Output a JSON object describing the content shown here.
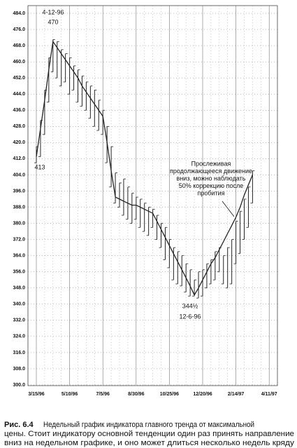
{
  "chart_data": {
    "type": "range-line",
    "categories": [
      "3/15/96",
      null,
      null,
      null,
      null,
      null,
      null,
      null,
      "5/10/96",
      null,
      null,
      null,
      null,
      null,
      null,
      null,
      "7/5/96",
      null,
      null,
      null,
      null,
      null,
      null,
      null,
      "8/30/96",
      null,
      null,
      null,
      null,
      null,
      null,
      null,
      "10/25/96",
      null,
      null,
      null,
      null,
      null,
      null,
      null,
      "12/20/96",
      null,
      null,
      null,
      null,
      null,
      null,
      null,
      "2/14/97",
      null,
      null,
      null,
      null,
      null,
      null,
      null,
      "4/11/97"
    ],
    "high": [
      418,
      431,
      446,
      462,
      471,
      470,
      466,
      464,
      462,
      458,
      456,
      453,
      450,
      448,
      446,
      441,
      436,
      428,
      418,
      405,
      400,
      402,
      398,
      395,
      393,
      392,
      390,
      388,
      387,
      384,
      380,
      378,
      372,
      368,
      366,
      364,
      360,
      357,
      352,
      356,
      357,
      360,
      362,
      366,
      368,
      364,
      368,
      372,
      381,
      386,
      392,
      398,
      406,
      null,
      null,
      null,
      null
    ],
    "low": [
      410,
      413,
      424,
      440,
      455,
      452,
      448,
      450,
      444,
      446,
      440,
      438,
      436,
      432,
      428,
      426,
      424,
      410,
      398,
      390,
      388,
      384,
      382,
      380,
      382,
      378,
      376,
      374,
      378,
      372,
      368,
      362,
      358,
      352,
      350,
      349,
      346,
      344,
      344,
      343,
      344,
      348,
      350,
      352,
      356,
      350,
      348,
      350,
      360,
      365,
      372,
      378,
      390,
      null,
      null,
      null,
      null
    ],
    "trend": [
      413,
      427,
      441,
      456,
      470,
      467,
      464,
      461,
      458,
      455,
      452,
      448,
      445,
      442,
      439,
      436,
      433,
      420,
      406,
      393,
      392,
      391,
      390,
      389,
      389,
      388,
      387,
      386,
      385,
      381,
      377,
      373,
      369,
      365,
      361,
      357,
      353,
      349,
      344.5,
      348,
      352,
      356,
      360,
      363,
      367,
      371,
      375,
      379,
      383,
      388,
      394,
      399,
      404,
      null,
      null,
      null,
      null
    ],
    "ylim": [
      300,
      484
    ],
    "yticks": [
      {
        "value": 300,
        "label": "300.0"
      },
      {
        "value": 308,
        "label": "308.0"
      },
      {
        "value": 316,
        "label": "316.0"
      },
      {
        "value": 324,
        "label": "324.0"
      },
      {
        "value": 332,
        "label": "332.0"
      },
      {
        "value": 340,
        "label": "340.0"
      },
      {
        "value": 348,
        "label": "348.0"
      },
      {
        "value": 356,
        "label": "356.0"
      },
      {
        "value": 364,
        "label": "364.0"
      },
      {
        "value": 372,
        "label": "372.0"
      },
      {
        "value": 380,
        "label": "380.0"
      },
      {
        "value": 388,
        "label": "388.0"
      },
      {
        "value": 396,
        "label": "396.0"
      },
      {
        "value": 404,
        "label": "404.0"
      },
      {
        "value": 412,
        "label": "412.0"
      },
      {
        "value": 420,
        "label": "420.0"
      },
      {
        "value": 428,
        "label": "428.0"
      },
      {
        "value": 436,
        "label": "436.0"
      },
      {
        "value": 444,
        "label": "444.0"
      },
      {
        "value": 452,
        "label": "452.0"
      },
      {
        "value": 460,
        "label": "460.0"
      },
      {
        "value": 468,
        "label": "468.0"
      },
      {
        "value": 476,
        "label": "476.0"
      },
      {
        "value": 484,
        "label": "484.0"
      }
    ],
    "grid": true,
    "color": "#222222",
    "annotations": {
      "peak_date": "4-12-96",
      "peak_value": "470",
      "start_value": "413",
      "low_value": "344½",
      "low_date": "12-6-96",
      "note": [
        "Прослеживая",
        "продолжающееся движение",
        "вниз, можно наблюдать",
        "50% коррекцию после",
        "пробития"
      ]
    },
    "caption": {
      "label": "Рис. 6.4",
      "lines": [
        "Недельный график индикатора главного тренда от максимальной",
        "цены. Стоит индикатору основной тенденции один раз принять направление",
        "вниз на недельном графике, и оно может длиться несколько недель кряду"
      ]
    }
  }
}
